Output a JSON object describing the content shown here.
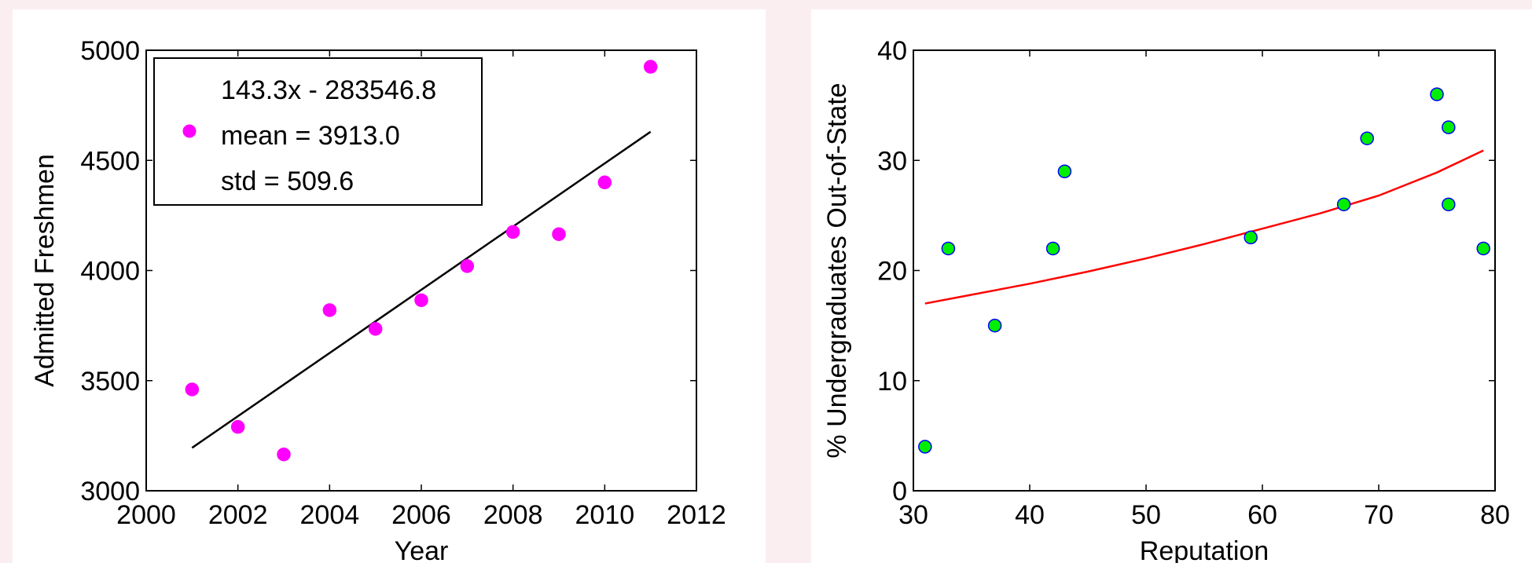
{
  "chart_data": [
    {
      "type": "scatter",
      "xlabel": "Year",
      "ylabel": "Admitted Freshmen",
      "xlim": [
        2000,
        2012
      ],
      "ylim": [
        3000,
        5000
      ],
      "xticks": [
        2000,
        2002,
        2004,
        2006,
        2008,
        2010,
        2012
      ],
      "yticks": [
        3000,
        3500,
        4000,
        4500,
        5000
      ],
      "legend": {
        "placement": "top-left",
        "lines": [
          "143.3x - 283546.8",
          "mean = 3913.0",
          "std = 509.6"
        ]
      },
      "marker_color": "#ff00ff",
      "fit_color": "#000000",
      "series": [
        {
          "x": [
            2001,
            2002,
            2003,
            2004,
            2005,
            2006,
            2007,
            2008,
            2009,
            2010,
            2011
          ],
          "values": [
            3460,
            3290,
            3165,
            3820,
            3735,
            3865,
            4020,
            4175,
            4165,
            4400,
            4925
          ]
        }
      ],
      "fit": {
        "x": [
          2001,
          2011
        ],
        "values": [
          3195,
          4630
        ]
      }
    },
    {
      "type": "scatter",
      "xlabel": "Reputation",
      "ylabel": "% Undergraduates Out-of-State",
      "xlim": [
        30,
        80
      ],
      "ylim": [
        0,
        40
      ],
      "xticks": [
        30,
        40,
        50,
        60,
        70,
        80
      ],
      "yticks": [
        0,
        10,
        20,
        30,
        40
      ],
      "marker_color": "#00ee00",
      "marker_edge_color": "#0000ff",
      "fit_color": "#ff0000",
      "series": [
        {
          "x": [
            31,
            33,
            37,
            42,
            43,
            59,
            67,
            69,
            75,
            76,
            76,
            79
          ],
          "values": [
            4,
            22,
            15,
            22,
            29,
            23,
            26,
            32,
            36,
            33,
            26,
            22
          ]
        }
      ],
      "fit": {
        "x": [
          31,
          35,
          40,
          45,
          50,
          55,
          60,
          65,
          70,
          75,
          79
        ],
        "values": [
          17.0,
          17.8,
          18.8,
          19.9,
          21.1,
          22.4,
          23.8,
          25.2,
          26.8,
          28.9,
          30.9
        ]
      }
    }
  ]
}
